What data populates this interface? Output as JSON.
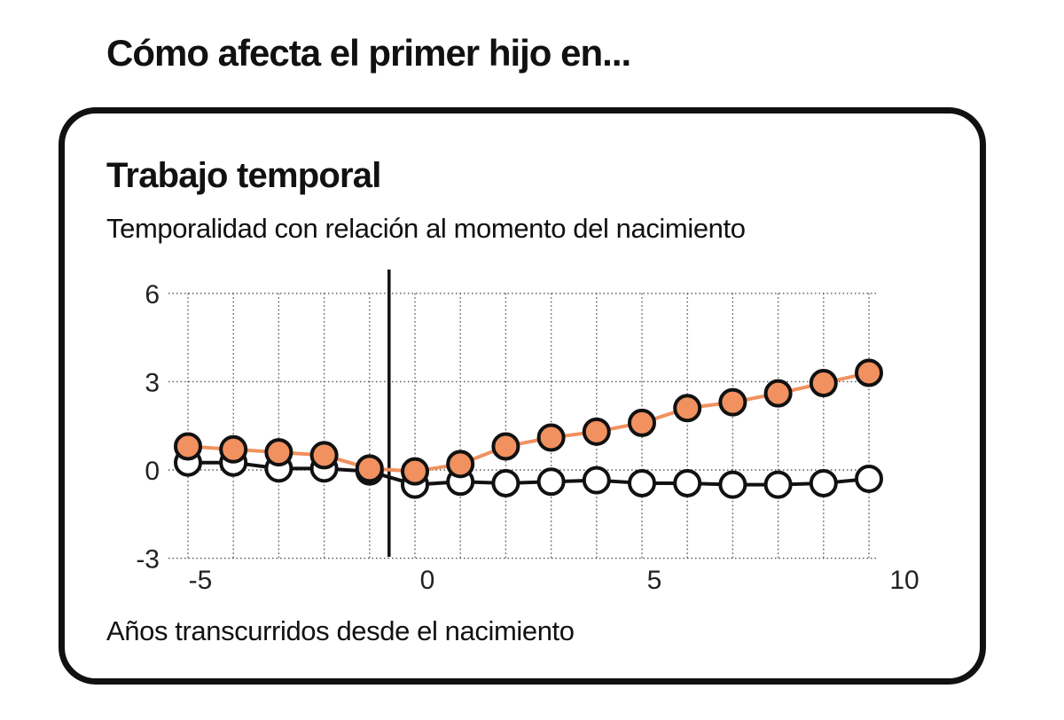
{
  "headline": "Cómo afecta el primer hijo en...",
  "card": {
    "title": "Trabajo temporal",
    "subtitle": "Temporalidad con relación al momento del nacimiento"
  },
  "colors": {
    "orange": "#f0915f",
    "white": "#ffffff",
    "ink": "#111111",
    "grid": "#555555"
  },
  "chart_data": {
    "type": "line",
    "title": "Trabajo temporal",
    "subtitle": "Temporalidad con relación al momento del nacimiento",
    "xlabel": "Años transcurridos desde el nacimiento",
    "ylabel": "",
    "xlim": [
      -5.5,
      10
    ],
    "ylim": [
      -3,
      6
    ],
    "x_ticks": [
      -5,
      0,
      5,
      10
    ],
    "y_ticks": [
      6,
      3,
      0,
      -3
    ],
    "grid": true,
    "grid_style": "dotted",
    "event_line_x": -1,
    "x": [
      -5,
      -4,
      -3,
      -2,
      -1,
      0,
      1,
      2,
      3,
      4,
      5,
      6,
      7,
      8,
      9,
      10
    ],
    "series": [
      {
        "color": "#f0915f",
        "values": [
          0.8,
          0.7,
          0.6,
          0.5,
          0.05,
          -0.05,
          0.2,
          0.8,
          1.1,
          1.3,
          1.6,
          2.1,
          2.3,
          2.6,
          2.95,
          3.3
        ]
      },
      {
        "color": "#ffffff",
        "values": [
          0.25,
          0.25,
          0.05,
          0.05,
          -0.05,
          -0.5,
          -0.4,
          -0.45,
          -0.4,
          -0.35,
          -0.45,
          -0.45,
          -0.5,
          -0.5,
          -0.45,
          -0.3
        ]
      }
    ]
  }
}
